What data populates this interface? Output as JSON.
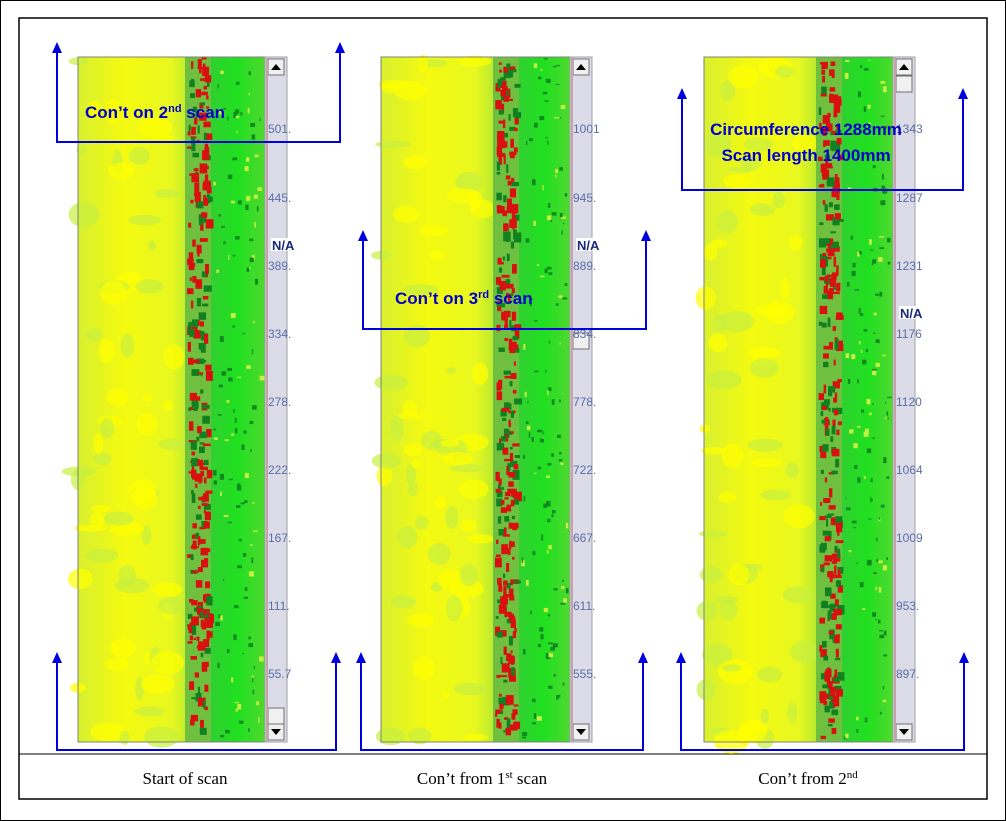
{
  "panels": [
    {
      "ticks": [
        "501.",
        "445.",
        "389.",
        "334.",
        "278.",
        "222.",
        "167.",
        "111.",
        "55.7"
      ],
      "na": "N/A",
      "caption": {
        "text": "Start of scan"
      },
      "note": {
        "text": "Con’t on 2",
        "sup": "nd",
        "rest": " scan"
      }
    },
    {
      "ticks": [
        "1001",
        "945.",
        "889.",
        "834.",
        "778.",
        "722.",
        "667.",
        "611.",
        "555."
      ],
      "na": "N/A",
      "caption": {
        "text": "Con’t from 1",
        "sup": "st",
        "rest": " scan"
      },
      "note": {
        "text": "Con’t on 3",
        "sup": "rd",
        "rest": " scan"
      }
    },
    {
      "ticks": [
        "1343",
        "1287",
        "1231",
        "1176",
        "1120",
        "1064",
        "1009",
        "953.",
        "897."
      ],
      "na": "N/A",
      "caption": {
        "text": "Con’t from 2",
        "sup": "nd"
      },
      "note": {
        "lines": [
          "Circumference 1288mm",
          "Scan length 1400mm"
        ]
      }
    }
  ]
}
